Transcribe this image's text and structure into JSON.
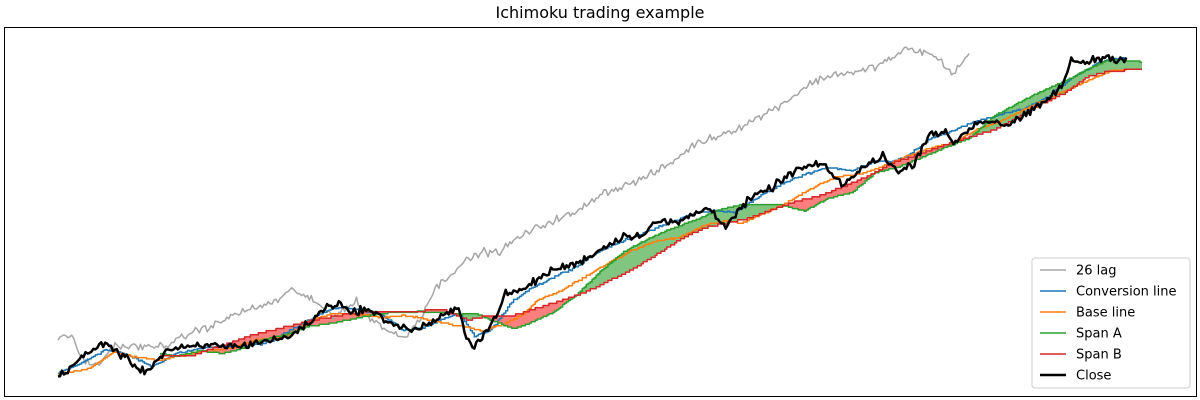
{
  "chart_data": {
    "type": "line",
    "title": "Ichimoku trading example",
    "xlabel": "",
    "ylabel": "",
    "x_range": [
      0,
      276
    ],
    "ylim": [
      94,
      186
    ],
    "grid": false,
    "axis_ticks": false,
    "legend_position": "lower-right",
    "keypoints": {
      "close": [
        [
          0,
          97.7
        ],
        [
          6,
          102.8
        ],
        [
          12,
          107
        ],
        [
          16,
          103.6
        ],
        [
          22,
          99
        ],
        [
          28,
          105
        ],
        [
          34,
          105.6
        ],
        [
          40,
          106.2
        ],
        [
          46,
          105.8
        ],
        [
          52,
          107.2
        ],
        [
          58,
          108
        ],
        [
          64,
          112
        ],
        [
          68,
          116
        ],
        [
          72,
          117.5
        ],
        [
          74,
          114.5
        ],
        [
          78,
          115.8
        ],
        [
          86,
          111.5
        ],
        [
          90,
          110
        ],
        [
          96,
          112.5
        ],
        [
          100,
          115
        ],
        [
          102,
          115.5
        ],
        [
          104,
          108.5
        ],
        [
          106,
          106
        ],
        [
          110,
          111
        ],
        [
          114,
          119.6
        ],
        [
          118,
          120.5
        ],
        [
          122,
          123.4
        ],
        [
          126,
          126
        ],
        [
          132,
          127.6
        ],
        [
          138,
          131.2
        ],
        [
          144,
          135
        ],
        [
          148,
          134.8
        ],
        [
          152,
          138.6
        ],
        [
          158,
          138.4
        ],
        [
          162,
          140.8
        ],
        [
          166,
          142.2
        ],
        [
          170,
          137.5
        ],
        [
          176,
          144.5
        ],
        [
          182,
          147.8
        ],
        [
          188,
          152.3
        ],
        [
          194,
          153.9
        ],
        [
          200,
          148.4
        ],
        [
          206,
          153.6
        ],
        [
          210,
          156.2
        ],
        [
          214,
          151.5
        ],
        [
          218,
          154.2
        ],
        [
          222,
          162.2
        ],
        [
          226,
          161.8
        ],
        [
          228,
          159.4
        ],
        [
          234,
          164.8
        ],
        [
          238,
          165.2
        ],
        [
          242,
          164
        ],
        [
          248,
          167.7
        ],
        [
          252,
          170.8
        ],
        [
          256,
          175
        ],
        [
          258,
          181
        ],
        [
          262,
          180.6
        ],
        [
          266,
          182
        ],
        [
          270,
          181.5
        ],
        [
          272,
          181.6
        ]
      ],
      "lag26": [
        [
          0,
          107.8
        ],
        [
          2,
          109.2
        ],
        [
          4,
          107.4
        ],
        [
          6,
          102.7
        ],
        [
          10,
          100.5
        ],
        [
          14,
          106
        ],
        [
          18,
          105.8
        ],
        [
          24,
          105.6
        ],
        [
          30,
          107
        ],
        [
          34,
          109.6
        ],
        [
          40,
          111.5
        ],
        [
          46,
          114.8
        ],
        [
          50,
          115.8
        ],
        [
          56,
          118
        ],
        [
          60,
          121
        ],
        [
          62,
          119.5
        ],
        [
          66,
          117
        ],
        [
          70,
          114
        ],
        [
          76,
          117.6
        ],
        [
          80,
          113
        ],
        [
          84,
          110
        ],
        [
          88,
          108
        ],
        [
          92,
          113
        ],
        [
          96,
          121
        ],
        [
          102,
          127
        ],
        [
          108,
          130.8
        ],
        [
          112,
          130.5
        ],
        [
          118,
          135
        ],
        [
          126,
          139
        ],
        [
          132,
          141
        ],
        [
          138,
          146
        ],
        [
          144,
          148
        ],
        [
          150,
          150.5
        ],
        [
          156,
          154
        ],
        [
          162,
          159
        ],
        [
          168,
          161.3
        ],
        [
          174,
          163.7
        ],
        [
          180,
          167
        ],
        [
          186,
          170.8
        ],
        [
          192,
          175.3
        ],
        [
          198,
          177.6
        ],
        [
          204,
          178
        ],
        [
          210,
          180.4
        ],
        [
          216,
          184
        ],
        [
          220,
          183.5
        ],
        [
          224,
          181.6
        ],
        [
          228,
          177.5
        ],
        [
          232,
          183
        ]
      ],
      "conversion": [
        [
          0,
          98.8
        ],
        [
          6,
          101.5
        ],
        [
          12,
          105
        ],
        [
          18,
          103.5
        ],
        [
          24,
          100.5
        ],
        [
          30,
          104
        ],
        [
          36,
          105.2
        ],
        [
          42,
          106
        ],
        [
          48,
          105.9
        ],
        [
          54,
          107
        ],
        [
          60,
          110.7
        ],
        [
          66,
          114
        ],
        [
          70,
          115.8
        ],
        [
          74,
          116
        ],
        [
          78,
          115
        ],
        [
          82,
          114.5
        ],
        [
          88,
          110
        ],
        [
          92,
          110.5
        ],
        [
          98,
          113
        ],
        [
          102,
          114.5
        ],
        [
          106,
          108.6
        ],
        [
          110,
          110
        ],
        [
          116,
          118
        ],
        [
          120,
          121
        ],
        [
          126,
          124
        ],
        [
          132,
          127
        ],
        [
          138,
          131
        ],
        [
          144,
          133.7
        ],
        [
          150,
          136
        ],
        [
          156,
          138.5
        ],
        [
          162,
          141
        ],
        [
          168,
          141.5
        ],
        [
          172,
          141
        ],
        [
          178,
          145
        ],
        [
          184,
          148.4
        ],
        [
          190,
          151.1
        ],
        [
          196,
          153
        ],
        [
          202,
          152
        ],
        [
          208,
          154.7
        ],
        [
          212,
          154.6
        ],
        [
          216,
          155.6
        ],
        [
          222,
          160.6
        ],
        [
          228,
          162.7
        ],
        [
          234,
          165.2
        ],
        [
          240,
          166.8
        ],
        [
          246,
          168.5
        ],
        [
          252,
          171.5
        ],
        [
          258,
          176.5
        ],
        [
          264,
          180
        ],
        [
          268,
          181.5
        ],
        [
          272,
          181.5
        ]
      ],
      "base": [
        [
          0,
          98.5
        ],
        [
          8,
          100
        ],
        [
          14,
          104.3
        ],
        [
          20,
          103
        ],
        [
          26,
          102.2
        ],
        [
          32,
          103.5
        ],
        [
          38,
          104.8
        ],
        [
          44,
          105.4
        ],
        [
          50,
          107.5
        ],
        [
          58,
          108.5
        ],
        [
          64,
          112.6
        ],
        [
          70,
          114.5
        ],
        [
          76,
          114.3
        ],
        [
          82,
          113.5
        ],
        [
          88,
          114
        ],
        [
          92,
          113.3
        ],
        [
          98,
          112
        ],
        [
          104,
          111
        ],
        [
          108,
          109.8
        ],
        [
          114,
          112
        ],
        [
          118,
          114
        ],
        [
          122,
          118
        ],
        [
          128,
          120.5
        ],
        [
          134,
          124
        ],
        [
          140,
          127.8
        ],
        [
          146,
          131
        ],
        [
          152,
          133.5
        ],
        [
          158,
          134.4
        ],
        [
          164,
          137.5
        ],
        [
          170,
          139
        ],
        [
          174,
          138.2
        ],
        [
          180,
          141
        ],
        [
          186,
          144
        ],
        [
          192,
          147.5
        ],
        [
          198,
          150.5
        ],
        [
          204,
          151.2
        ],
        [
          210,
          153.2
        ],
        [
          216,
          156
        ],
        [
          222,
          157.9
        ],
        [
          228,
          159.5
        ],
        [
          234,
          163
        ],
        [
          240,
          165.2
        ],
        [
          246,
          168.2
        ],
        [
          252,
          171
        ],
        [
          258,
          174
        ],
        [
          264,
          176.5
        ],
        [
          268,
          178.5
        ],
        [
          272,
          178.5
        ]
      ],
      "spanA": [
        [
          26,
          104
        ],
        [
          30,
          103.2
        ],
        [
          36,
          104.7
        ],
        [
          42,
          104
        ],
        [
          46,
          105
        ],
        [
          52,
          107.6
        ],
        [
          58,
          109
        ],
        [
          64,
          111.2
        ],
        [
          70,
          112
        ],
        [
          76,
          113.3
        ],
        [
          82,
          114.5
        ],
        [
          86,
          114.8
        ],
        [
          92,
          115
        ],
        [
          98,
          114.8
        ],
        [
          102,
          114.2
        ],
        [
          106,
          114.6
        ],
        [
          110,
          112.8
        ],
        [
          116,
          110.5
        ],
        [
          120,
          112
        ],
        [
          126,
          114.8
        ],
        [
          132,
          119.5
        ],
        [
          138,
          125.5
        ],
        [
          144,
          130.8
        ],
        [
          150,
          134
        ],
        [
          156,
          136.8
        ],
        [
          162,
          139
        ],
        [
          168,
          141.7
        ],
        [
          174,
          143.2
        ],
        [
          178,
          143
        ],
        [
          184,
          143
        ],
        [
          190,
          141.5
        ],
        [
          196,
          144.8
        ],
        [
          202,
          146.3
        ],
        [
          208,
          151.5
        ],
        [
          214,
          153.1
        ],
        [
          220,
          155.6
        ],
        [
          226,
          158.3
        ],
        [
          232,
          160.6
        ],
        [
          238,
          166.3
        ],
        [
          244,
          169.7
        ],
        [
          250,
          172.8
        ],
        [
          256,
          175.5
        ],
        [
          262,
          178.7
        ],
        [
          268,
          181.5
        ],
        [
          276,
          180.7
        ]
      ],
      "spanB": [
        [
          26,
          103.5
        ],
        [
          34,
          103.5
        ],
        [
          42,
          106.2
        ],
        [
          50,
          109
        ],
        [
          58,
          111
        ],
        [
          66,
          113
        ],
        [
          74,
          114.5
        ],
        [
          82,
          115
        ],
        [
          90,
          115
        ],
        [
          98,
          115.6
        ],
        [
          104,
          112.8
        ],
        [
          110,
          114
        ],
        [
          116,
          114
        ],
        [
          122,
          116
        ],
        [
          128,
          117.8
        ],
        [
          134,
          120
        ],
        [
          140,
          123
        ],
        [
          146,
          126
        ],
        [
          152,
          129.8
        ],
        [
          158,
          133.8
        ],
        [
          164,
          136.9
        ],
        [
          170,
          138.3
        ],
        [
          176,
          139.6
        ],
        [
          182,
          142
        ],
        [
          188,
          144
        ],
        [
          194,
          145.5
        ],
        [
          200,
          148
        ],
        [
          206,
          150.5
        ],
        [
          212,
          154
        ],
        [
          218,
          156
        ],
        [
          224,
          158.2
        ],
        [
          230,
          160.3
        ],
        [
          238,
          162.8
        ],
        [
          244,
          166
        ],
        [
          250,
          169.5
        ],
        [
          256,
          172.4
        ],
        [
          262,
          176.8
        ],
        [
          268,
          178.4
        ],
        [
          276,
          178.6
        ]
      ]
    },
    "legend": [
      "26 lag",
      "Conversion line",
      "Base line",
      "Span A",
      "Span B",
      "Close"
    ],
    "colors": {
      "lag26": "#a5a5a5",
      "conversion": "#1f77b4",
      "base": "#ff7f0e",
      "spanA": "#2ca02c",
      "spanB": "#d62728",
      "close": "#000000",
      "cloud_bull": "#2ca02c",
      "cloud_bear": "#ff0000"
    }
  }
}
